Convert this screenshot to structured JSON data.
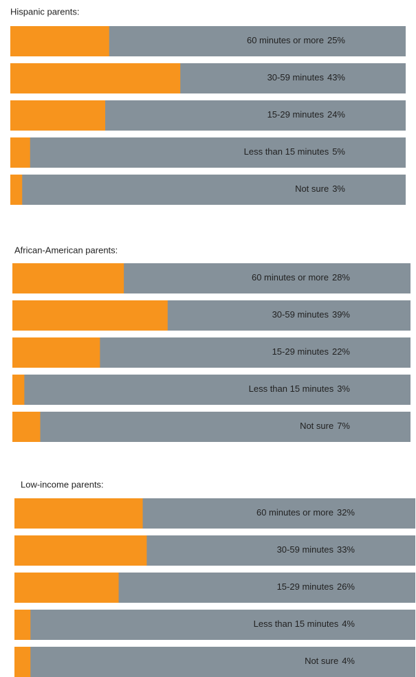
{
  "chart_data": [
    {
      "type": "bar",
      "orientation": "horizontal",
      "title": "Hispanic parents:",
      "categories": [
        "60 minutes or more",
        "30-59 minutes",
        "15-29 minutes",
        "Less than 15 minutes",
        "Not sure"
      ],
      "values": [
        25,
        43,
        24,
        5,
        3
      ],
      "value_labels": [
        "25%",
        "43%",
        "24%",
        "5%",
        "3%"
      ],
      "color": "#f7941d",
      "background_color": "#85919a",
      "xlim": [
        0,
        100
      ]
    },
    {
      "type": "bar",
      "orientation": "horizontal",
      "title": "African-American parents:",
      "categories": [
        "60 minutes or more",
        "30-59 minutes",
        "15-29 minutes",
        "Less than 15 minutes",
        "Not sure"
      ],
      "values": [
        28,
        39,
        22,
        3,
        7
      ],
      "value_labels": [
        "28%",
        "39%",
        "22%",
        "3%",
        "7%"
      ],
      "color": "#f7941d",
      "background_color": "#85919a",
      "xlim": [
        0,
        100
      ]
    },
    {
      "type": "bar",
      "orientation": "horizontal",
      "title": "Low-income parents:",
      "categories": [
        "60 minutes or more",
        "30-59 minutes",
        "15-29 minutes",
        "Less than 15 minutes",
        "Not sure"
      ],
      "values": [
        32,
        33,
        26,
        4,
        4
      ],
      "value_labels": [
        "32%",
        "33%",
        "26%",
        "4%",
        "4%"
      ],
      "color": "#f7941d",
      "background_color": "#85919a",
      "xlim": [
        0,
        100
      ]
    }
  ]
}
